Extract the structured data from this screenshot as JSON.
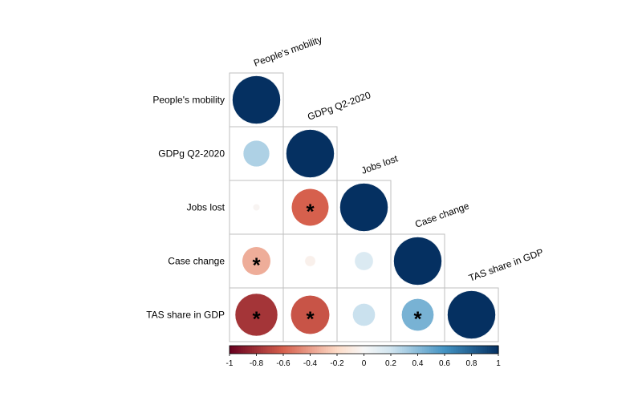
{
  "chart_data": {
    "type": "heatmap",
    "subtype": "correlation-circle-lower-triangle",
    "variables": [
      "People's mobility",
      "GDPg Q2-2020",
      "Jobs lost",
      "Case change",
      "TAS share in GDP"
    ],
    "matrix": [
      [
        1.0,
        null,
        null,
        null,
        null
      ],
      [
        0.3,
        1.0,
        null,
        null,
        null
      ],
      [
        -0.02,
        -0.6,
        1.0,
        null,
        null
      ],
      [
        -0.35,
        -0.05,
        0.15,
        1.0,
        null
      ],
      [
        -0.78,
        -0.65,
        0.22,
        0.45,
        1.0
      ]
    ],
    "significant": [
      [
        false,
        false,
        false,
        false,
        false
      ],
      [
        false,
        false,
        false,
        false,
        false
      ],
      [
        false,
        true,
        false,
        false,
        false
      ],
      [
        true,
        false,
        false,
        false,
        false
      ],
      [
        true,
        true,
        false,
        true,
        false
      ]
    ],
    "significance_marker": "*",
    "colorbar": {
      "range": [
        -1,
        1
      ],
      "ticks": [
        "-1",
        "-0.8",
        "-0.6",
        "-0.4",
        "-0.2",
        "0",
        "0.2",
        "0.4",
        "0.6",
        "0.8",
        "1"
      ],
      "placement": "bottom",
      "colors": {
        "neg_strong": "#67001f",
        "neg_mid": "#d6604d",
        "neg_light": "#fddbc7",
        "neutral": "#f7f7f7",
        "pos_light": "#d1e5f0",
        "pos_mid": "#4393c3",
        "pos_strong": "#053061"
      }
    },
    "grid": true
  }
}
